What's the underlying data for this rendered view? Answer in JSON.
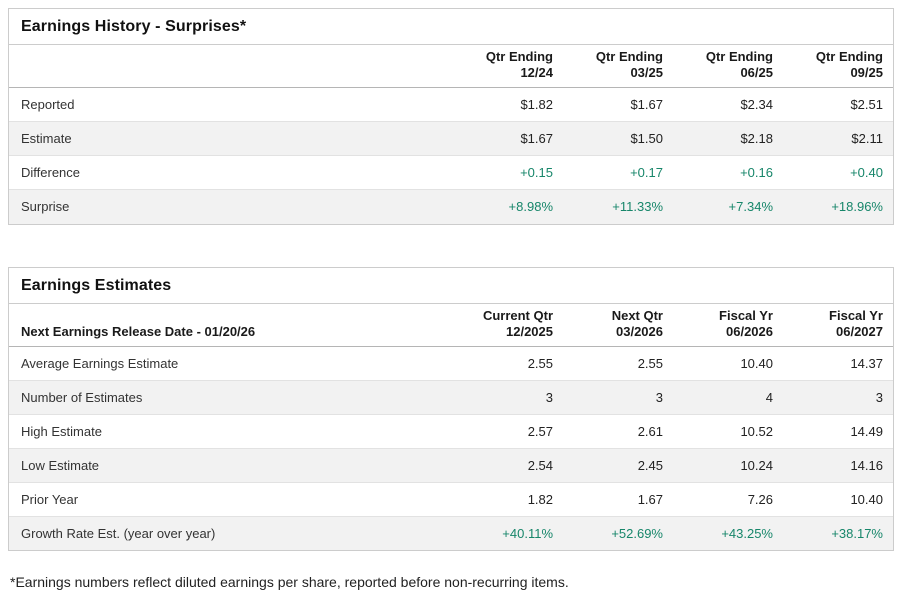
{
  "colors": {
    "positive": "#17866a",
    "text": "#222222",
    "border": "#cccccc",
    "alt_row_bg": "#f2f2f2"
  },
  "tables": [
    {
      "title": "Earnings History - Surprises*",
      "corner_label": "",
      "columns": [
        {
          "line1": "Qtr Ending",
          "line2": "12/24"
        },
        {
          "line1": "Qtr Ending",
          "line2": "03/25"
        },
        {
          "line1": "Qtr Ending",
          "line2": "06/25"
        },
        {
          "line1": "Qtr Ending",
          "line2": "09/25"
        }
      ],
      "rows": [
        {
          "label": "Reported",
          "values": [
            "$1.82",
            "$1.67",
            "$2.34",
            "$2.51"
          ],
          "positive": false,
          "alt": false
        },
        {
          "label": "Estimate",
          "values": [
            "$1.67",
            "$1.50",
            "$2.18",
            "$2.11"
          ],
          "positive": false,
          "alt": true
        },
        {
          "label": "Difference",
          "values": [
            "+0.15",
            "+0.17",
            "+0.16",
            "+0.40"
          ],
          "positive": true,
          "alt": false
        },
        {
          "label": "Surprise",
          "values": [
            "+8.98%",
            "+11.33%",
            "+7.34%",
            "+18.96%"
          ],
          "positive": true,
          "alt": true
        }
      ]
    },
    {
      "title": "Earnings Estimates",
      "corner_label": "Next Earnings Release Date - 01/20/26",
      "columns": [
        {
          "line1": "Current Qtr",
          "line2": "12/2025"
        },
        {
          "line1": "Next Qtr",
          "line2": "03/2026"
        },
        {
          "line1": "Fiscal Yr",
          "line2": "06/2026"
        },
        {
          "line1": "Fiscal Yr",
          "line2": "06/2027"
        }
      ],
      "rows": [
        {
          "label": "Average Earnings Estimate",
          "values": [
            "2.55",
            "2.55",
            "10.40",
            "14.37"
          ],
          "positive": false,
          "alt": false
        },
        {
          "label": "Number of Estimates",
          "values": [
            "3",
            "3",
            "4",
            "3"
          ],
          "positive": false,
          "alt": true
        },
        {
          "label": "High Estimate",
          "values": [
            "2.57",
            "2.61",
            "10.52",
            "14.49"
          ],
          "positive": false,
          "alt": false
        },
        {
          "label": "Low Estimate",
          "values": [
            "2.54",
            "2.45",
            "10.24",
            "14.16"
          ],
          "positive": false,
          "alt": true
        },
        {
          "label": "Prior Year",
          "values": [
            "1.82",
            "1.67",
            "7.26",
            "10.40"
          ],
          "positive": false,
          "alt": false
        },
        {
          "label": "Growth Rate Est. (year over year)",
          "values": [
            "+40.11%",
            "+52.69%",
            "+43.25%",
            "+38.17%"
          ],
          "positive": true,
          "alt": true
        }
      ]
    }
  ],
  "footnote": "*Earnings numbers reflect diluted earnings per share, reported before non-recurring items."
}
